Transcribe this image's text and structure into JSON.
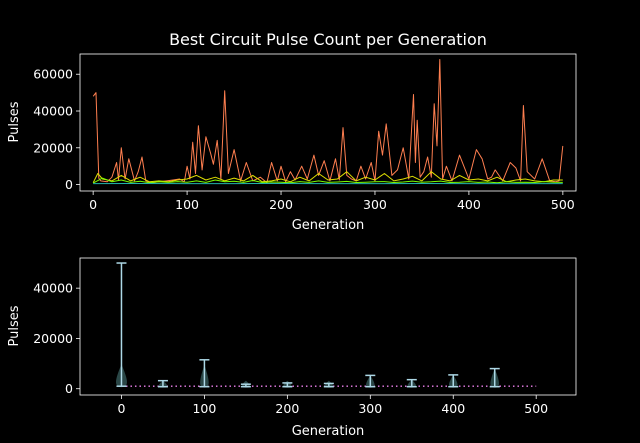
{
  "chart_data": [
    {
      "type": "line",
      "title": "Best Circuit Pulse Count per Generation",
      "xlabel": "Generation",
      "ylabel": "Pulses",
      "xlim": [
        -14,
        514
      ],
      "ylim": [
        -3500,
        71000
      ],
      "xticks": [
        0,
        100,
        200,
        300,
        400,
        500
      ],
      "yticks": [
        0,
        20000,
        40000,
        60000
      ],
      "ytick_labels": [
        "0",
        "20000",
        "40000",
        "60000"
      ],
      "grid": false,
      "series": [
        {
          "color": "#ff7f50",
          "x": [
            0,
            3,
            6,
            8,
            15,
            20,
            25,
            27,
            30,
            34,
            38,
            44,
            48,
            52,
            56,
            62,
            70,
            78,
            85,
            92,
            97,
            100,
            103,
            106,
            109,
            112,
            116,
            120,
            125,
            128,
            132,
            136,
            140,
            144,
            150,
            157,
            163,
            170,
            178,
            185,
            190,
            196,
            200,
            205,
            210,
            215,
            222,
            228,
            235,
            240,
            246,
            252,
            258,
            262,
            266,
            270,
            275,
            280,
            285,
            290,
            296,
            300,
            304,
            308,
            312,
            318,
            324,
            330,
            336,
            341,
            343,
            345,
            348,
            352,
            356,
            360,
            363,
            366,
            369,
            372,
            376,
            382,
            390,
            400,
            408,
            414,
            420,
            424,
            428,
            436,
            444,
            450,
            455,
            458,
            462,
            470,
            478,
            486,
            492,
            496,
            500
          ],
          "y": [
            48000,
            50000,
            3500,
            2000,
            1500,
            4000,
            12000,
            2500,
            20000,
            3000,
            14000,
            2000,
            7000,
            15000,
            2000,
            1000,
            1500,
            2000,
            2500,
            3000,
            1500,
            10000,
            3000,
            23000,
            6000,
            32000,
            8000,
            26000,
            17000,
            11000,
            24000,
            3000,
            51000,
            6000,
            19000,
            2000,
            12000,
            2000,
            4000,
            1000,
            12000,
            2000,
            10000,
            1500,
            7000,
            2500,
            10000,
            3000,
            16000,
            5000,
            13000,
            2000,
            14000,
            2500,
            31000,
            5000,
            3000,
            2000,
            10000,
            3000,
            12000,
            2000,
            29000,
            16000,
            33000,
            5000,
            8000,
            20000,
            3000,
            49000,
            12000,
            35000,
            4000,
            7000,
            15000,
            4000,
            44000,
            21000,
            68000,
            3000,
            10000,
            2000,
            16000,
            3000,
            19000,
            14000,
            3000,
            4000,
            8000,
            2000,
            12000,
            9000,
            2000,
            43000,
            7000,
            3000,
            14000,
            2000,
            1500,
            2000,
            21000
          ]
        },
        {
          "color": "#dede00",
          "x": [
            0,
            5,
            10,
            20,
            30,
            40,
            50,
            60,
            70,
            80,
            90,
            100,
            110,
            120,
            130,
            140,
            150,
            160,
            170,
            180,
            190,
            200,
            210,
            220,
            230,
            240,
            250,
            260,
            270,
            280,
            290,
            300,
            310,
            320,
            330,
            340,
            350,
            360,
            370,
            380,
            390,
            400,
            410,
            420,
            430,
            440,
            450,
            460,
            470,
            480,
            490,
            500
          ],
          "y": [
            1000,
            6000,
            3000,
            2000,
            5000,
            2000,
            4000,
            1500,
            2000,
            1500,
            2500,
            3000,
            5000,
            2500,
            4000,
            2000,
            3500,
            2000,
            5000,
            1500,
            2000,
            3000,
            1500,
            4000,
            2000,
            6000,
            2500,
            3000,
            7000,
            2000,
            4000,
            2500,
            6000,
            2000,
            3000,
            4500,
            2000,
            7000,
            3000,
            2000,
            5000,
            2500,
            3000,
            2000,
            4000,
            1500,
            2500,
            3000,
            2000,
            1500,
            2500,
            2500
          ]
        },
        {
          "color": "#7cfc00",
          "x": [
            0,
            10,
            20,
            30,
            40,
            50,
            60,
            70,
            80,
            90,
            100,
            110,
            120,
            130,
            140,
            150,
            160,
            170,
            180,
            190,
            200,
            210,
            220,
            230,
            240,
            250,
            260,
            270,
            280,
            290,
            300,
            310,
            320,
            330,
            340,
            350,
            360,
            370,
            380,
            390,
            400,
            410,
            420,
            430,
            440,
            450,
            460,
            470,
            480,
            490,
            500
          ],
          "y": [
            800,
            3500,
            1500,
            2500,
            1200,
            1800,
            1000,
            1500,
            1200,
            1600,
            1300,
            2000,
            1200,
            2500,
            1500,
            1800,
            1200,
            2200,
            1100,
            1400,
            1300,
            1000,
            1600,
            1200,
            2000,
            1200,
            1400,
            1700,
            1100,
            1300,
            1500,
            1600,
            1100,
            1400,
            1900,
            1300,
            1500,
            1900,
            1100,
            1300,
            1600,
            1200,
            1400,
            1000,
            1500,
            1200,
            1300,
            1100,
            1600,
            1300,
            1200
          ]
        },
        {
          "color": "#20b2aa",
          "x": [
            0,
            50,
            100,
            150,
            200,
            250,
            300,
            350,
            400,
            450,
            500
          ],
          "y": [
            500,
            600,
            550,
            500,
            600,
            550,
            500,
            600,
            550,
            500,
            550
          ]
        }
      ]
    },
    {
      "type": "violin",
      "xlabel": "Generation",
      "ylabel": "Pulses",
      "xlim": [
        -50,
        548
      ],
      "ylim": [
        -2500,
        52000
      ],
      "xticks": [
        0,
        100,
        200,
        300,
        400,
        500
      ],
      "yticks": [
        0,
        20000,
        40000
      ],
      "ytick_labels": [
        "0",
        "20000",
        "40000"
      ],
      "grid": false,
      "positions": [
        0,
        50,
        100,
        150,
        200,
        250,
        300,
        350,
        400,
        450
      ],
      "min": [
        1000,
        800,
        800,
        800,
        800,
        800,
        800,
        800,
        800,
        800
      ],
      "max": [
        50000,
        3200,
        11500,
        1800,
        2300,
        2100,
        5300,
        3600,
        5500,
        8000
      ],
      "baseline": {
        "y": 1000,
        "color": "#ee82ee",
        "style": "dotted"
      },
      "colors": {
        "body": "#2f4f4f",
        "lines": "#add8e6"
      }
    }
  ]
}
